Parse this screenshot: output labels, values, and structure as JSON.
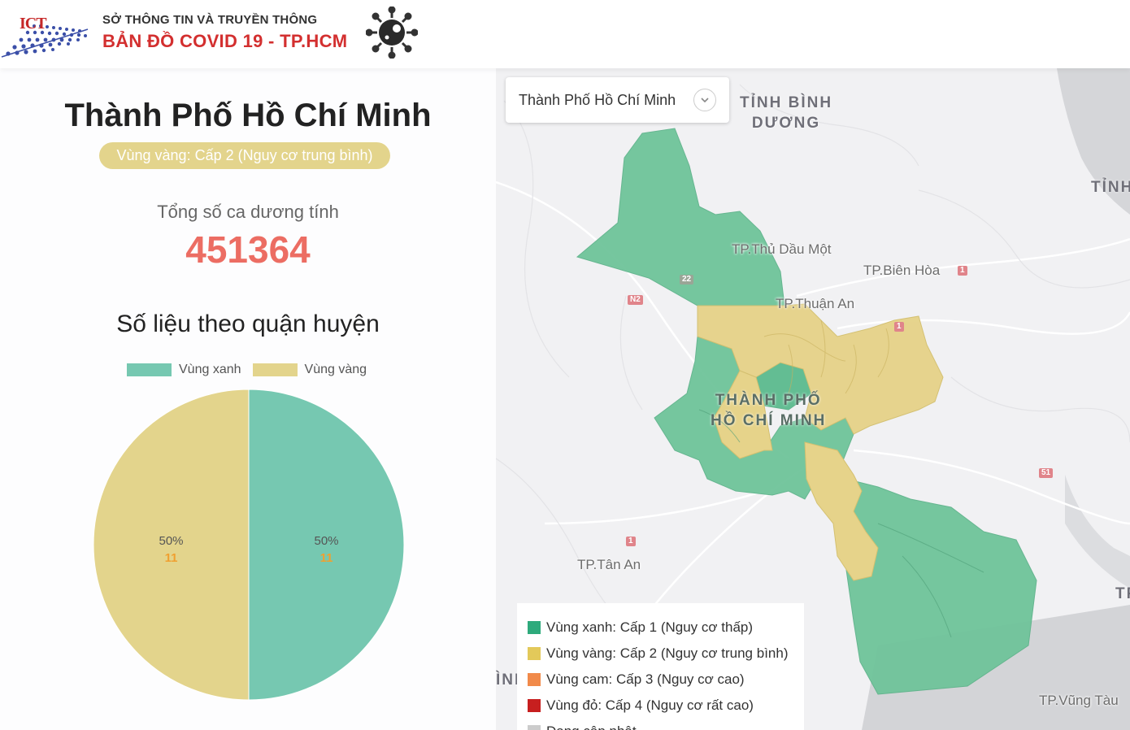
{
  "header": {
    "logo_text": "ICT",
    "subtitle": "SỞ THÔNG TIN VÀ TRUYỀN THÔNG",
    "title": "BẢN ĐỒ  COVID 19 - TP.HCM"
  },
  "summary": {
    "city": "Thành Phố Hồ Chí Minh",
    "zone_badge": "Vùng vàng: Cấp 2 (Nguy cơ trung bình)",
    "total_label": "Tổng số ca dương tính",
    "total_value": "451364",
    "district_title": "Số liệu theo quận huyện"
  },
  "colors": {
    "green": "#76c8b1",
    "yellow": "#e3d48c",
    "map_green": "#6fc49a",
    "map_yellow": "#e6d38a",
    "positive_red": "#ec6d63"
  },
  "chart_data": {
    "type": "pie",
    "legend": [
      "Vùng xanh",
      "Vùng vàng"
    ],
    "slices": [
      {
        "label": "Vùng xanh",
        "percent": 50,
        "count": 11,
        "color": "#76c8b1"
      },
      {
        "label": "Vùng vàng",
        "percent": 50,
        "count": 11,
        "color": "#e3d48c"
      }
    ],
    "legend_position": "top"
  },
  "map": {
    "select_value": "Thành Phố Hồ Chí Minh",
    "places": {
      "binh_duong": "TỈNH BÌNH\nDƯƠNG",
      "tinh_right": "TỈNH",
      "thu_dau_mot": "TP.Thủ Dầu Một",
      "bien_hoa": "TP.Biên Hòa",
      "thuan_an": "TP.Thuận An",
      "hcm": "THÀNH PHỐ\nHỒ CHÍ MINH",
      "tan_an": "TP.Tân An",
      "vung_tau": "TP.Vũng Tàu",
      "tp_right": "TP",
      "inh_left": "ÌNI"
    },
    "shields": [
      "22",
      "N2",
      "1",
      "1",
      "51",
      "1"
    ],
    "legend": [
      {
        "label": "Vùng xanh: Cấp 1 (Nguy cơ thấp)",
        "color": "#2eaa7c"
      },
      {
        "label": "Vùng vàng: Cấp 2 (Nguy cơ trung bình)",
        "color": "#e3c95a"
      },
      {
        "label": "Vùng cam: Cấp 3 (Nguy cơ cao)",
        "color": "#f18a4a"
      },
      {
        "label": "Vùng đỏ: Cấp 4 (Nguy cơ rất cao)",
        "color": "#c71f1f"
      },
      {
        "label": "Đang cập nhật",
        "color": "#cccccc"
      }
    ]
  }
}
